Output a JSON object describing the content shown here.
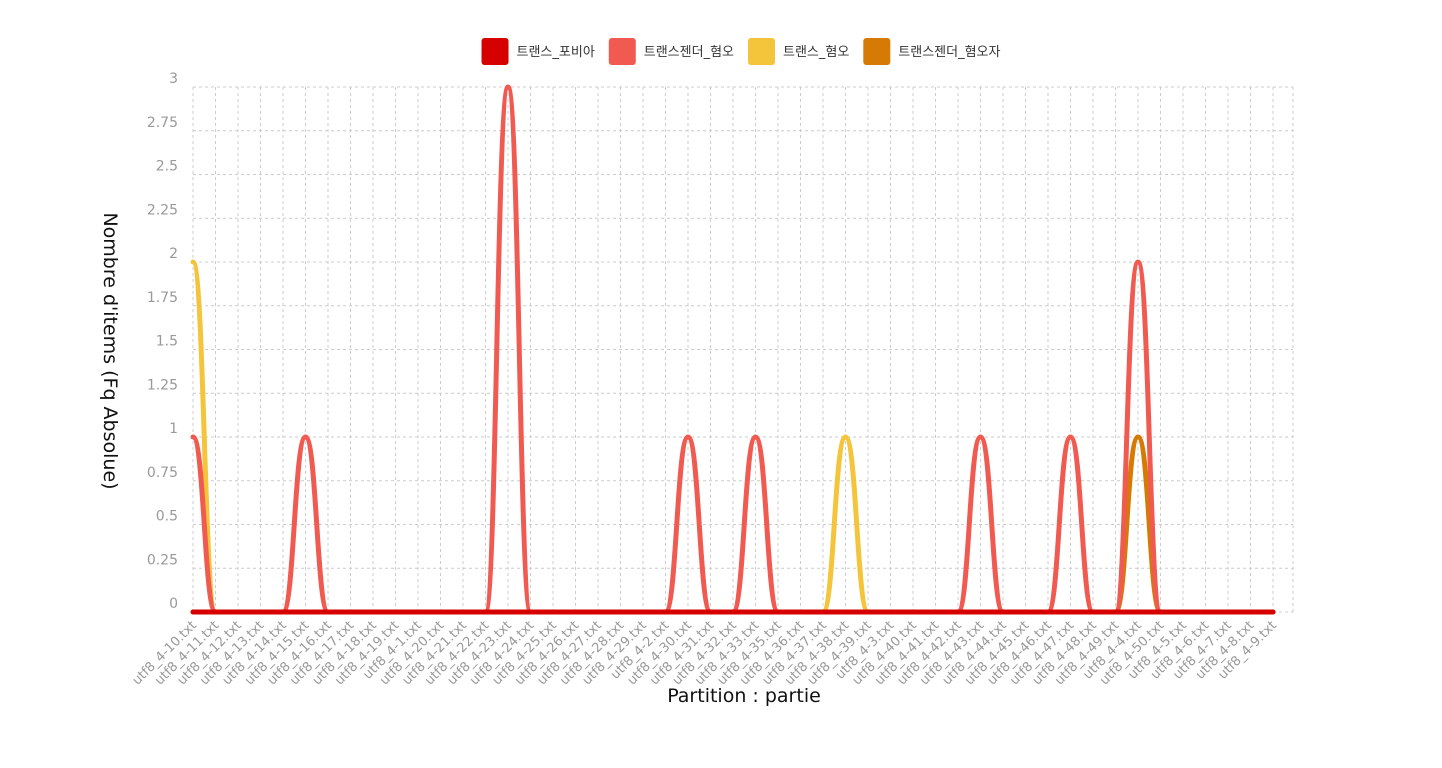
{
  "chart_data": {
    "type": "line",
    "xlabel": "Partition : partie",
    "ylabel": "Nombre d'items (Fq Absolue)",
    "ylim": [
      0,
      3
    ],
    "yticks": [
      "0",
      "0.25",
      "0.5",
      "0.75",
      "1",
      "1.25",
      "1.5",
      "1.75",
      "2",
      "2.25",
      "2.5",
      "2.75",
      "3"
    ],
    "grid": true,
    "legend_position": "top",
    "categories": [
      "utf8_4-10.txt",
      "utf8_4-11.txt",
      "utf8_4-12.txt",
      "utf8_4-13.txt",
      "utf8_4-14.txt",
      "utf8_4-15.txt",
      "utf8_4-16.txt",
      "utf8_4-17.txt",
      "utf8_4-18.txt",
      "utf8_4-19.txt",
      "utf8_4-1.txt",
      "utf8_4-20.txt",
      "utf8_4-21.txt",
      "utf8_4-22.txt",
      "utf8_4-23.txt",
      "utf8_4-24.txt",
      "utf8_4-25.txt",
      "utf8_4-26.txt",
      "utf8_4-27.txt",
      "utf8_4-28.txt",
      "utf8_4-29.txt",
      "utf8_4-2.txt",
      "utf8_4-30.txt",
      "utf8_4-31.txt",
      "utf8_4-32.txt",
      "utf8_4-33.txt",
      "utf8_4-35.txt",
      "utf8_4-36.txt",
      "utf8_4-37.txt",
      "utf8_4-38.txt",
      "utf8_4-39.txt",
      "utf8_4-3.txt",
      "utf8_4-40.txt",
      "utf8_4-41.txt",
      "utf8_4-42.txt",
      "utf8_4-43.txt",
      "utf8_4-44.txt",
      "utf8_4-45.txt",
      "utf8_4-46.txt",
      "utf8_4-47.txt",
      "utf8_4-48.txt",
      "utf8_4-49.txt",
      "utf8_4-4.txt",
      "utf8_4-50.txt",
      "utf8_4-5.txt",
      "utf8_4-6.txt",
      "utf8_4-7.txt",
      "utf8_4-8.txt",
      "utf8_4-9.txt"
    ],
    "series": [
      {
        "name": "트랜스_포비아",
        "color": "#d60000",
        "values": [
          0,
          0,
          0,
          0,
          0,
          0,
          0,
          0,
          0,
          0,
          0,
          0,
          0,
          0,
          0,
          0,
          0,
          0,
          0,
          0,
          0,
          0,
          0,
          0,
          0,
          0,
          0,
          0,
          0,
          0,
          0,
          0,
          0,
          0,
          0,
          0,
          0,
          0,
          0,
          0,
          0,
          0,
          0,
          0,
          0,
          0,
          0,
          0,
          0
        ]
      },
      {
        "name": "트랜스젠더_혐오",
        "color": "#f05a50",
        "values": [
          1,
          0,
          0,
          0,
          0,
          1,
          0,
          0,
          0,
          0,
          0,
          0,
          0,
          0,
          3,
          0,
          0,
          0,
          0,
          0,
          0,
          0,
          1,
          0,
          0,
          1,
          0,
          0,
          0,
          0,
          0,
          0,
          0,
          0,
          0,
          1,
          0,
          0,
          0,
          1,
          0,
          0,
          2,
          0,
          0,
          0,
          0,
          0,
          0
        ]
      },
      {
        "name": "트랜스_혐오",
        "color": "#f4c43a",
        "values": [
          2,
          0,
          0,
          0,
          0,
          0,
          0,
          0,
          0,
          0,
          0,
          0,
          0,
          0,
          0,
          0,
          0,
          0,
          0,
          0,
          0,
          0,
          0,
          0,
          0,
          0,
          0,
          0,
          0,
          1,
          0,
          0,
          0,
          0,
          0,
          0,
          0,
          0,
          0,
          0,
          0,
          0,
          0,
          0,
          0,
          0,
          0,
          0,
          0
        ]
      },
      {
        "name": "트랜스젠더_혐오자",
        "color": "#d67a06",
        "values": [
          0,
          0,
          0,
          0,
          0,
          0,
          0,
          0,
          0,
          0,
          0,
          0,
          0,
          0,
          0,
          0,
          0,
          0,
          0,
          0,
          0,
          0,
          0,
          0,
          0,
          0,
          0,
          0,
          0,
          0,
          0,
          0,
          0,
          0,
          0,
          0,
          0,
          0,
          0,
          0,
          0,
          0,
          1,
          0,
          0,
          0,
          0,
          0,
          0
        ]
      }
    ]
  }
}
